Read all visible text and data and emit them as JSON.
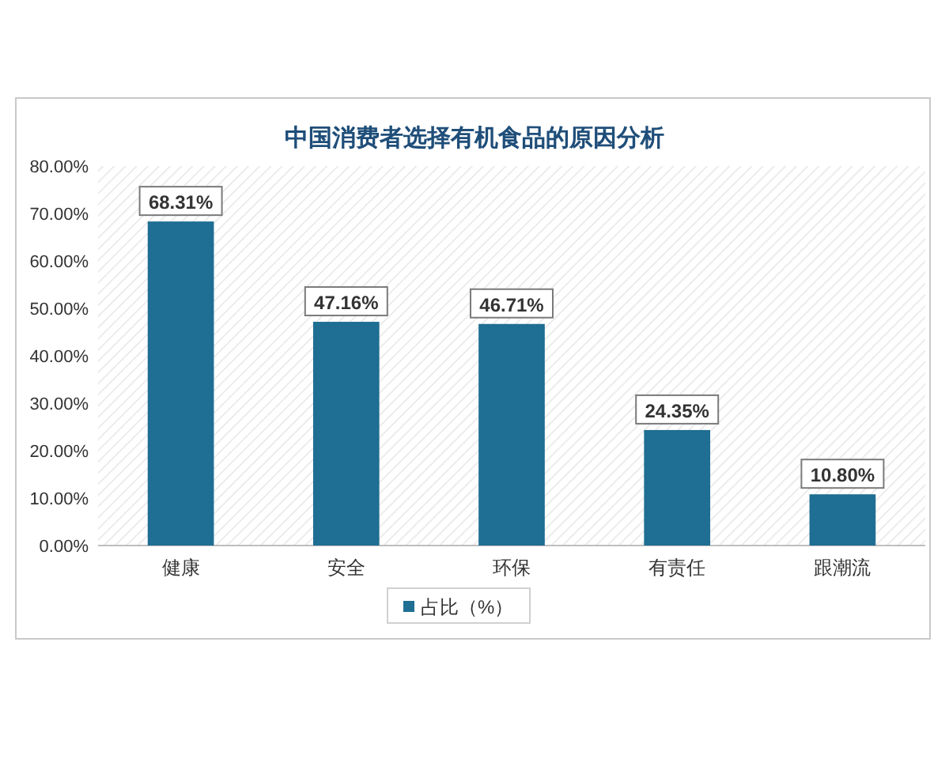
{
  "chart_data": {
    "type": "bar",
    "title": "中国消费者选择有机食品的原因分析",
    "categories": [
      "健康",
      "安全",
      "环保",
      "有责任",
      "跟潮流"
    ],
    "series": [
      {
        "name": "占比（%）",
        "color": "#1f6e93",
        "values": [
          68.31,
          47.16,
          46.71,
          24.35,
          10.8
        ],
        "value_labels": [
          "68.31%",
          "47.16%",
          "46.71%",
          "24.35%",
          "10.80%"
        ]
      }
    ],
    "ylim": [
      0,
      80
    ],
    "yticks": [
      {
        "value": 0,
        "label": "0.00%"
      },
      {
        "value": 10,
        "label": "10.00%"
      },
      {
        "value": 20,
        "label": "20.00%"
      },
      {
        "value": 30,
        "label": "30.00%"
      },
      {
        "value": 40,
        "label": "40.00%"
      },
      {
        "value": 50,
        "label": "50.00%"
      },
      {
        "value": 60,
        "label": "60.00%"
      },
      {
        "value": 70,
        "label": "70.00%"
      },
      {
        "value": 80,
        "label": "80.00%"
      }
    ],
    "grid": false,
    "legend": "bottom"
  }
}
